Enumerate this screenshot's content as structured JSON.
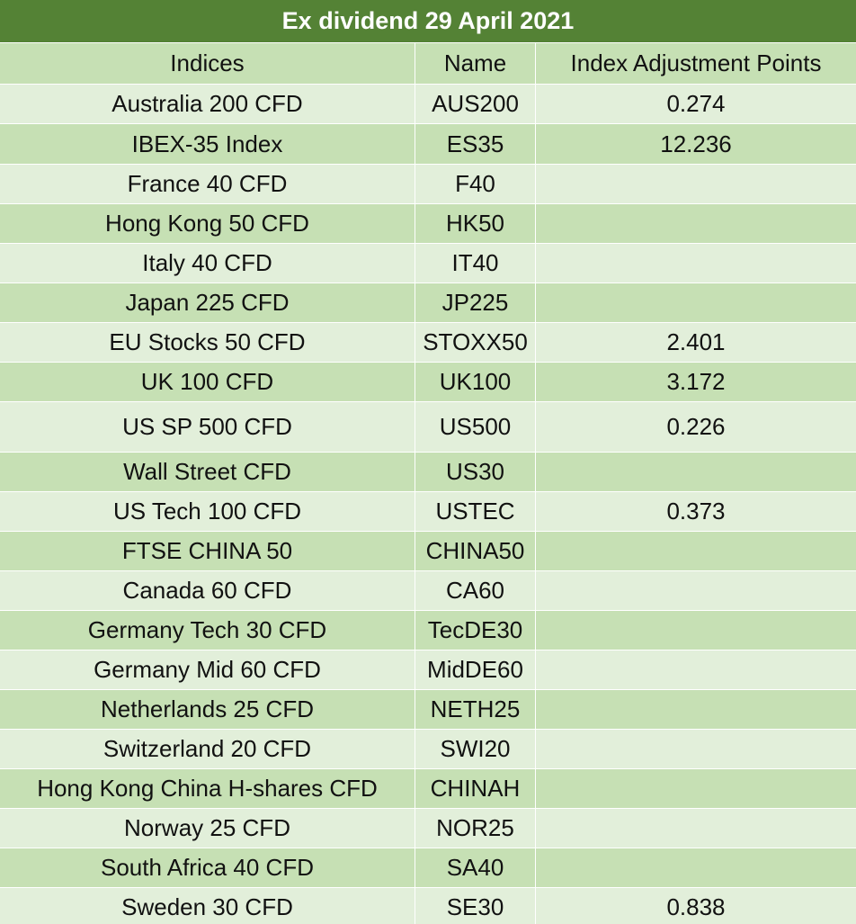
{
  "title": "Ex dividend 29 April 2021",
  "headers": {
    "indices": "Indices",
    "name": "Name",
    "points": "Index Adjustment Points"
  },
  "rows": [
    {
      "index": "Australia 200 CFD",
      "name": "AUS200",
      "points": "0.274"
    },
    {
      "index": "IBEX-35 Index",
      "name": "ES35",
      "points": "12.236"
    },
    {
      "index": "France 40 CFD",
      "name": "F40",
      "points": ""
    },
    {
      "index": "Hong Kong 50 CFD",
      "name": "HK50",
      "points": ""
    },
    {
      "index": "Italy 40 CFD",
      "name": "IT40",
      "points": ""
    },
    {
      "index": "Japan 225 CFD",
      "name": "JP225",
      "points": ""
    },
    {
      "index": "EU Stocks 50 CFD",
      "name": "STOXX50",
      "points": "2.401"
    },
    {
      "index": "UK 100 CFD",
      "name": "UK100",
      "points": "3.172"
    },
    {
      "index": "US SP 500 CFD",
      "name": "US500",
      "points": "0.226"
    },
    {
      "index": "Wall Street CFD",
      "name": "US30",
      "points": ""
    },
    {
      "index": "US Tech 100 CFD",
      "name": "USTEC",
      "points": "0.373"
    },
    {
      "index": "FTSE CHINA 50",
      "name": "CHINA50",
      "points": ""
    },
    {
      "index": "Canada 60 CFD",
      "name": "CA60",
      "points": ""
    },
    {
      "index": "Germany Tech 30 CFD",
      "name": "TecDE30",
      "points": ""
    },
    {
      "index": "Germany Mid 60 CFD",
      "name": "MidDE60",
      "points": ""
    },
    {
      "index": "Netherlands 25 CFD",
      "name": "NETH25",
      "points": ""
    },
    {
      "index": "Switzerland 20 CFD",
      "name": "SWI20",
      "points": ""
    },
    {
      "index": "Hong Kong China H-shares CFD",
      "name": "CHINAH",
      "points": ""
    },
    {
      "index": "Norway 25 CFD",
      "name": "NOR25",
      "points": ""
    },
    {
      "index": "South Africa 40 CFD",
      "name": "SA40",
      "points": ""
    },
    {
      "index": "Sweden 30 CFD",
      "name": "SE30",
      "points": "0.838"
    }
  ],
  "colors": {
    "title_bg": "#548235",
    "row_dark": "#c6e0b4",
    "row_light": "#e2efda"
  }
}
